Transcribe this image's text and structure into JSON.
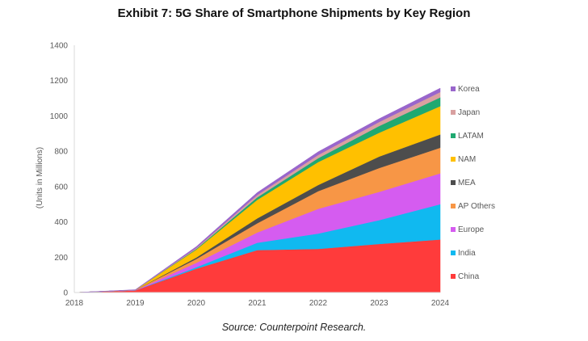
{
  "title": "Exhibit 7:  5G Share of Smartphone Shipments by Key Region",
  "source": "Source:  Counterpoint Research.",
  "chart_data": {
    "type": "area",
    "stacked": true,
    "title": "Exhibit 7:  5G Share of Smartphone Shipments by Key Region",
    "xlabel": "",
    "ylabel": "(Units in Millions)",
    "x": [
      "2018",
      "2019",
      "2020",
      "2021",
      "2022",
      "2023",
      "2024"
    ],
    "ylim": [
      0,
      1400
    ],
    "yticks": [
      0,
      200,
      400,
      600,
      800,
      1000,
      1200,
      1400
    ],
    "grid": false,
    "legend_position": "right",
    "series": [
      {
        "name": "China",
        "color": "#ff3b3b",
        "values": [
          0,
          12,
          135,
          240,
          247,
          275,
          300
        ]
      },
      {
        "name": "India",
        "color": "#10b9f0",
        "values": [
          0,
          0,
          8,
          42,
          87,
          135,
          200
        ]
      },
      {
        "name": "Europe",
        "color": "#d55cf0",
        "values": [
          0,
          1,
          25,
          58,
          140,
          160,
          175
        ]
      },
      {
        "name": "AP Others",
        "color": "#f79646",
        "values": [
          0,
          1,
          22,
          52,
          100,
          135,
          145
        ]
      },
      {
        "name": "MEA",
        "color": "#4d4d4d",
        "values": [
          0,
          0,
          8,
          28,
          35,
          65,
          75
        ]
      },
      {
        "name": "NAM",
        "color": "#ffc000",
        "values": [
          0,
          0,
          45,
          105,
          130,
          135,
          160
        ]
      },
      {
        "name": "LATAM",
        "color": "#1fa971",
        "values": [
          0,
          0,
          4,
          14,
          22,
          38,
          50
        ]
      },
      {
        "name": "Japan",
        "color": "#d9a0a0",
        "values": [
          0,
          0,
          5,
          13,
          18,
          23,
          30
        ]
      },
      {
        "name": "Korea",
        "color": "#9966cc",
        "values": [
          0,
          2,
          8,
          14,
          18,
          18,
          22
        ]
      }
    ]
  }
}
